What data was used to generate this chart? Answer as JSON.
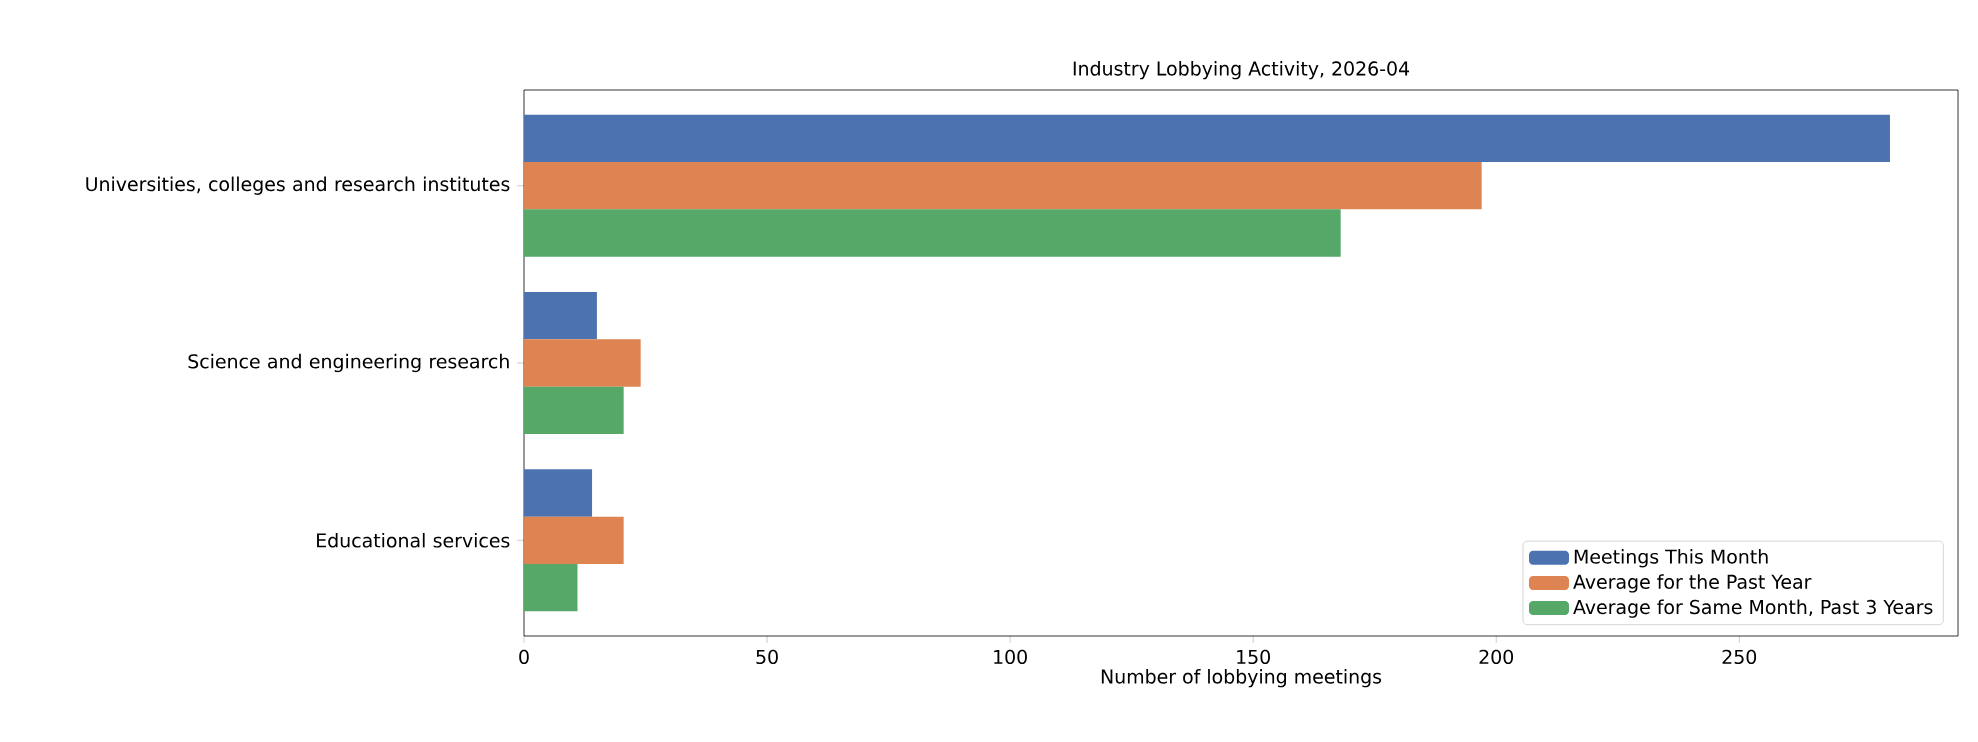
{
  "chart_data": {
    "type": "bar",
    "orientation": "horizontal",
    "title": "Industry Lobbying Activity, 2026-04",
    "xlabel": "Number of lobbying meetings",
    "categories": [
      "Universities, colleges and research institutes",
      "Science and engineering research",
      "Educational services"
    ],
    "series": [
      {
        "name": "Meetings This Month",
        "color": "#4c72b0",
        "values": [
          281,
          15,
          14
        ]
      },
      {
        "name": "Average for the Past Year",
        "color": "#dd8452",
        "values": [
          197,
          24,
          20.5
        ]
      },
      {
        "name": "Average for Same Month, Past 3 Years",
        "color": "#55a868",
        "values": [
          168,
          20.5,
          11
        ]
      }
    ],
    "xlim": [
      0,
      295
    ],
    "xticks": [
      0,
      50,
      100,
      150,
      200,
      250
    ],
    "legend": "bottom right",
    "grid": false
  }
}
